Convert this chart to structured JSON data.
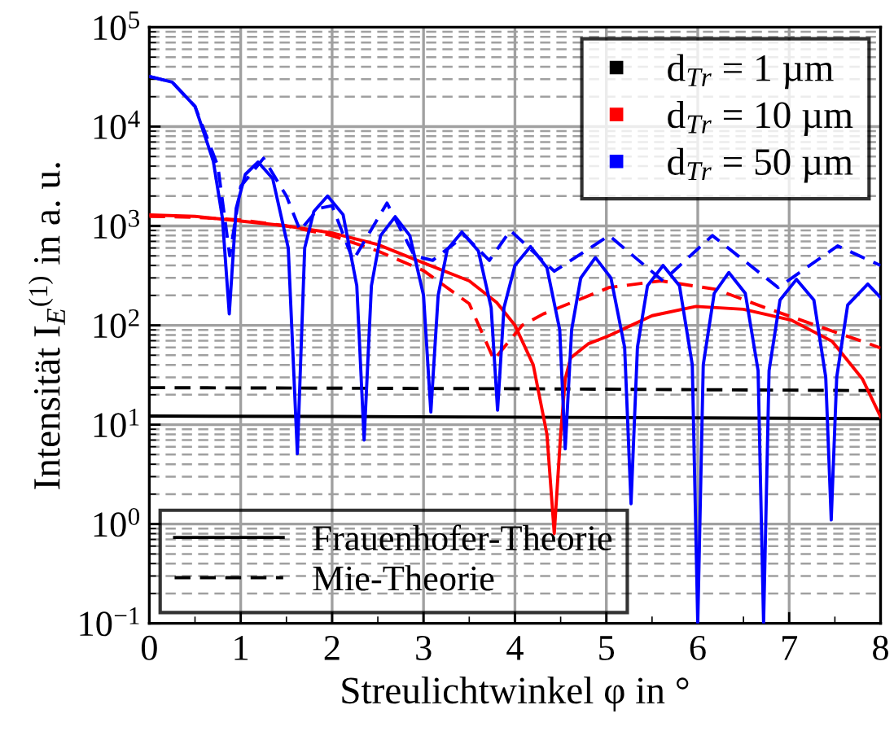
{
  "chart_data": {
    "type": "line",
    "xlabel": "Streulichtwinkel φ in °",
    "ylabel": "Intensität I$_{E}$$^{(1)}$ in a. u.",
    "log": "y",
    "grid": true,
    "legend": "top right",
    "marker": "none",
    "xlim": [
      0,
      8
    ],
    "xticks": [
      0,
      1,
      2,
      3,
      4,
      5,
      6,
      7,
      8
    ],
    "ylim": [
      0.1,
      100000
    ],
    "yticks": [
      {
        "value": 0.1,
        "label": "10$^{−1}$"
      },
      {
        "value": 1,
        "label": "10$^{0}$"
      },
      {
        "value": 10,
        "label": "10$^{1}$"
      },
      {
        "value": 100,
        "label": "10$^{2}$"
      },
      {
        "value": 1000,
        "label": "10$^{3}$"
      },
      {
        "value": 10000,
        "label": "10$^{4}$"
      },
      {
        "value": 100000,
        "label": "10$^{5}$"
      }
    ],
    "annotations": [
      "Frauenhofer-Theorie",
      "Mie-Theorie"
    ],
    "series": [
      {
        "name": "d$_{Tr}$ = 1 µm",
        "color": "#000000",
        "line_style": "solid",
        "x": [
          0,
          2,
          4,
          6,
          8
        ],
        "values": [
          12.2,
          12.1,
          11.9,
          11.7,
          11.5
        ]
      },
      {
        "color": "#000000",
        "line_style": "dashed",
        "x": [
          0,
          2,
          4,
          6,
          8
        ],
        "values": [
          23.6,
          23.3,
          23,
          22.5,
          22
        ]
      },
      {
        "name": "d$_{Tr}$ = 10 µm",
        "color": "#ff0000",
        "line_style": "solid",
        "x": [
          0,
          0.5,
          1,
          1.5,
          2,
          2.5,
          3,
          3.5,
          3.8,
          4,
          4.2,
          4.35,
          4.43,
          4.5,
          4.55,
          4.61,
          4.8,
          5.02,
          5.5,
          5.98,
          6.5,
          7.02,
          7.47,
          7.8,
          8
        ],
        "values": [
          1290,
          1250,
          1120,
          1000,
          850,
          650,
          425,
          280,
          170,
          100,
          40,
          8,
          0.8,
          8,
          29,
          47,
          65,
          78,
          125,
          155,
          145,
          113,
          69,
          29,
          12
        ]
      },
      {
        "color": "#ff0000",
        "line_style": "dashed",
        "x": [
          0,
          0.5,
          1,
          1.5,
          2,
          2.5,
          3,
          3.5,
          3.77,
          4.08,
          4.31,
          5.03,
          5.6,
          6.2,
          6.7,
          7.29,
          7.88,
          8
        ],
        "values": [
          1250,
          1220,
          1150,
          1000,
          800,
          560,
          355,
          165,
          45,
          100,
          130,
          240,
          280,
          230,
          155,
          100,
          65,
          59
        ]
      },
      {
        "name": "d$_{Tr}$ = 50 µm",
        "color": "#0000ff",
        "line_style": "solid",
        "x": [
          0,
          0.25,
          0.5,
          0.7,
          0.8,
          0.875,
          0.95,
          1.05,
          1.19,
          1.35,
          1.52,
          1.62,
          1.7,
          1.8,
          1.95,
          2.12,
          2.27,
          2.35,
          2.43,
          2.53,
          2.69,
          2.85,
          3.0,
          3.08,
          3.16,
          3.26,
          3.42,
          3.6,
          3.74,
          3.81,
          3.88,
          4.0,
          4.17,
          4.35,
          4.49,
          4.55,
          4.62,
          4.72,
          4.88,
          5.05,
          5.2,
          5.27,
          5.34,
          5.45,
          5.62,
          5.8,
          5.94,
          6.0,
          6.06,
          6.18,
          6.34,
          6.52,
          6.66,
          6.72,
          6.78,
          6.9,
          7.08,
          7.27,
          7.4,
          7.46,
          7.52,
          7.64,
          7.86,
          8
        ],
        "values": [
          32000,
          28000,
          16000,
          4500,
          1200,
          130,
          1500,
          3300,
          4400,
          3000,
          600,
          5.1,
          600,
          1400,
          2000,
          1300,
          250,
          7,
          250,
          800,
          1240,
          800,
          200,
          13.4,
          200,
          580,
          870,
          560,
          150,
          14,
          150,
          400,
          620,
          380,
          90,
          5.7,
          90,
          300,
          480,
          300,
          60,
          1.6,
          60,
          250,
          400,
          250,
          40,
          0.1,
          40,
          210,
          340,
          210,
          35,
          0.1,
          35,
          180,
          290,
          180,
          30,
          1.1,
          30,
          160,
          260,
          190
        ]
      },
      {
        "color": "#0000ff",
        "line_style": "dashed",
        "x": [
          0,
          0.25,
          0.5,
          0.75,
          0.88,
          1.0,
          1.25,
          1.5,
          1.65,
          1.85,
          2.0,
          2.23,
          2.6,
          2.9,
          3.1,
          3.45,
          3.72,
          3.95,
          4.43,
          5.03,
          5.62,
          6.16,
          6.88,
          7.53,
          8
        ],
        "values": [
          32000,
          28000,
          16000,
          4000,
          500,
          2500,
          4800,
          2000,
          900,
          1500,
          1600,
          450,
          1700,
          500,
          450,
          800,
          450,
          900,
          350,
          800,
          280,
          800,
          240,
          630,
          400
        ]
      }
    ]
  }
}
